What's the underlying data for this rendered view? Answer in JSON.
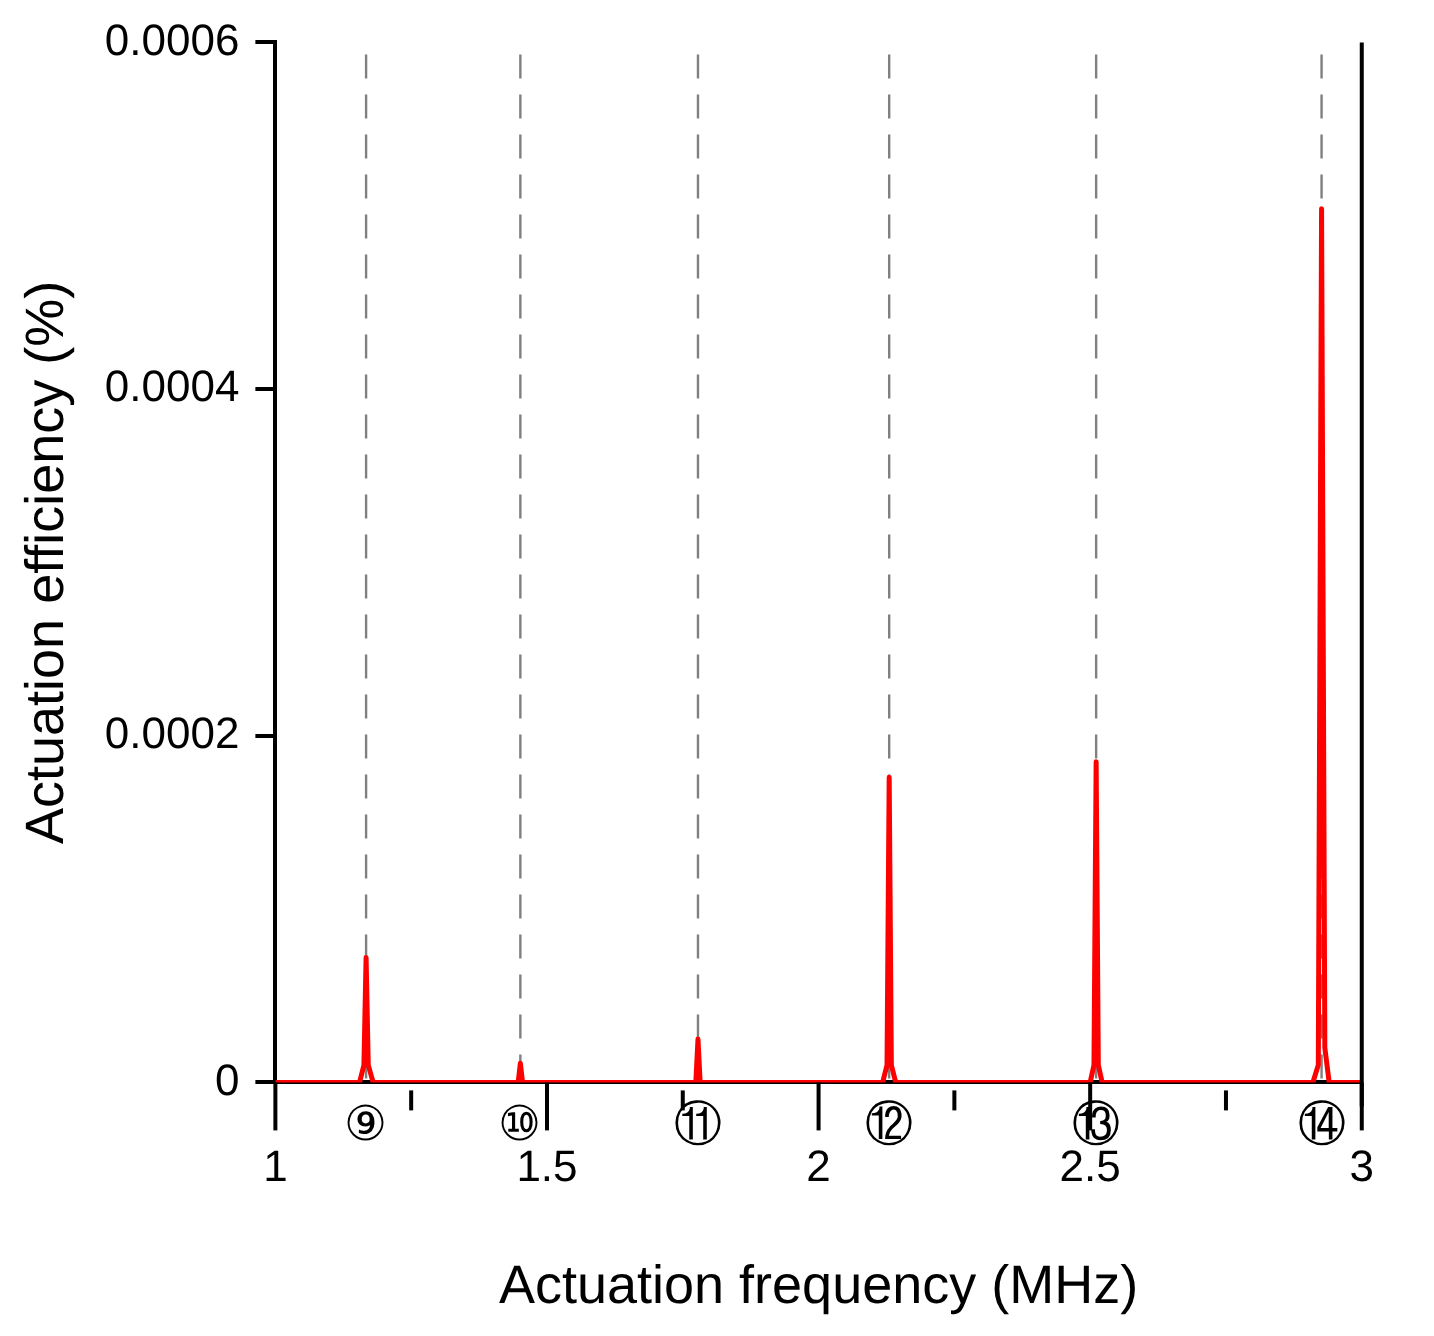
{
  "chart_data": {
    "type": "line",
    "xlabel": "Actuation frequency (MHz)",
    "ylabel": "Actuation efficiency (%)",
    "x": [
      1,
      1.155,
      1.163,
      1.167,
      1.171,
      1.18,
      1.44,
      1.447,
      1.451,
      1.455,
      1.462,
      1.767,
      1.774,
      1.778,
      1.782,
      1.79,
      2.118,
      2.126,
      2.13,
      2.134,
      2.142,
      2.5,
      2.507,
      2.511,
      2.515,
      2.522,
      2.91,
      2.92,
      2.926,
      2.932,
      2.94,
      3
    ],
    "series": [
      {
        "color": "#ff0000",
        "values": [
          0,
          0,
          1e-05,
          7.2e-05,
          1e-05,
          0,
          0,
          0,
          1.1e-05,
          0,
          0,
          0,
          0,
          2.5e-05,
          0,
          0,
          0,
          1e-05,
          0.000176,
          1e-05,
          0,
          0,
          1e-05,
          0.000185,
          1e-05,
          0,
          0,
          1e-05,
          0.000504,
          2e-05,
          0,
          0
        ]
      }
    ],
    "xlim": [
      1,
      3
    ],
    "xticks": [
      1,
      {
        "value": 1.25,
        "label": null
      },
      1.5,
      {
        "value": 1.75,
        "label": null
      },
      2,
      {
        "value": 2.25,
        "label": null
      },
      2.5,
      {
        "value": 2.75,
        "label": null
      },
      3
    ],
    "ylim": [
      0,
      0.0006
    ],
    "yticks": [
      0,
      0.0002,
      0.0004,
      0.0006
    ],
    "ref_lines": [
      {
        "axis": "x",
        "value": 1.167,
        "label": "⑨",
        "color": "#808080",
        "line_style": "dashed"
      },
      {
        "axis": "x",
        "value": 1.451,
        "label": "⑩",
        "color": "#808080",
        "line_style": "dashed"
      },
      {
        "axis": "x",
        "value": 1.778,
        "label": "⑪",
        "color": "#808080",
        "line_style": "dashed"
      },
      {
        "axis": "x",
        "value": 2.13,
        "label": "⑫",
        "color": "#808080",
        "line_style": "dashed"
      },
      {
        "axis": "x",
        "value": 2.511,
        "label": "⑬",
        "color": "#808080",
        "line_style": "dashed"
      },
      {
        "axis": "x",
        "value": 2.926,
        "label": "⑭",
        "color": "#808080",
        "line_style": "dashed"
      }
    ],
    "grid": false,
    "legend": false,
    "marker": "none",
    "line_style": "solid"
  }
}
